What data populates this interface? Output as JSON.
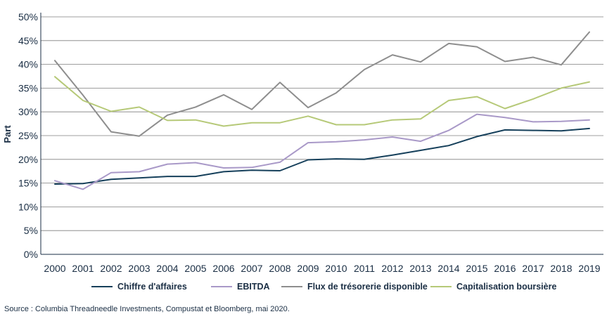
{
  "chart_data": {
    "type": "line",
    "title": "",
    "xlabel": "",
    "ylabel": "Part",
    "ylim": [
      0,
      50
    ],
    "y_ticks": [
      "0%",
      "5%",
      "10%",
      "15%",
      "20%",
      "25%",
      "30%",
      "35%",
      "40%",
      "45%",
      "50%"
    ],
    "grid": "horizontal",
    "legend_position": "bottom",
    "categories": [
      "2000",
      "2001",
      "2002",
      "2003",
      "2004",
      "2005",
      "2006",
      "2007",
      "2008",
      "2009",
      "2010",
      "2011",
      "2012",
      "2013",
      "2014",
      "2015",
      "2016",
      "2017",
      "2018",
      "2019"
    ],
    "series": [
      {
        "name": "Chiffre d'affaires",
        "color": "#16405b",
        "values": [
          14.8,
          14.9,
          15.8,
          16.1,
          16.4,
          16.4,
          17.4,
          17.7,
          17.6,
          19.9,
          20.1,
          20.0,
          20.9,
          21.9,
          22.9,
          24.8,
          26.2,
          26.1,
          26.0,
          26.5
        ]
      },
      {
        "name": "EBITDA",
        "color": "#a999c8",
        "values": [
          15.5,
          13.7,
          17.2,
          17.4,
          19.0,
          19.3,
          18.2,
          18.3,
          19.4,
          23.5,
          23.7,
          24.1,
          24.7,
          23.8,
          26.1,
          29.5,
          28.8,
          27.9,
          28.0,
          28.3
        ]
      },
      {
        "name": "Flux de trésorerie disponible",
        "color": "#8e8e8e",
        "values": [
          40.8,
          33.5,
          25.8,
          24.9,
          29.3,
          31.0,
          33.6,
          30.5,
          36.2,
          30.9,
          34.0,
          38.9,
          42.0,
          40.5,
          44.4,
          43.7,
          40.6,
          41.5,
          39.9,
          46.8
        ]
      },
      {
        "name": "Capitalisation boursière",
        "color": "#b6c978",
        "values": [
          37.4,
          32.4,
          30.1,
          31.0,
          28.2,
          28.3,
          27.0,
          27.7,
          27.7,
          29.1,
          27.3,
          27.3,
          28.3,
          28.5,
          32.4,
          33.2,
          30.7,
          32.7,
          35.0,
          36.3
        ]
      }
    ]
  },
  "source": "Source : Columbia Threadneedle Investments, Compustat et Bloomberg, mai 2020."
}
